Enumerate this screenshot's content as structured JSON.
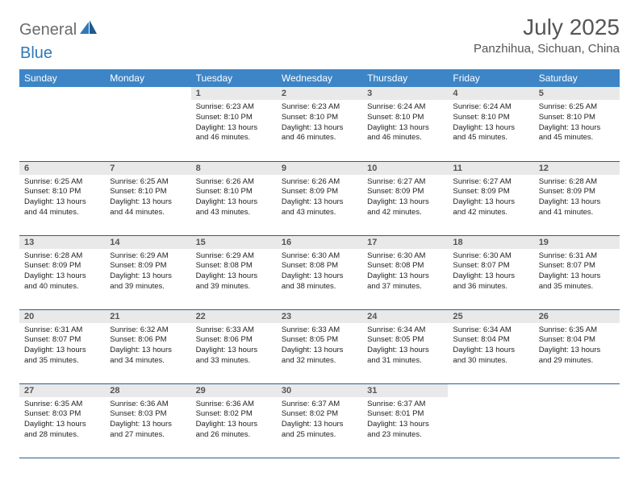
{
  "branding": {
    "text1": "General",
    "text2": "Blue"
  },
  "title": "July 2025",
  "location": "Panzhihua, Sichuan, China",
  "colors": {
    "header_bg": "#3d85c6",
    "header_text": "#ffffff",
    "daynum_bg": "#e9e9e9",
    "border": "#2f5d8a",
    "brand_gray": "#6b6b6b",
    "brand_blue": "#2f78b7"
  },
  "weekday_labels": [
    "Sunday",
    "Monday",
    "Tuesday",
    "Wednesday",
    "Thursday",
    "Friday",
    "Saturday"
  ],
  "weeks": [
    [
      {
        "day": null
      },
      {
        "day": null
      },
      {
        "day": 1,
        "sunrise": "6:23 AM",
        "sunset": "8:10 PM",
        "daylight": "13 hours and 46 minutes."
      },
      {
        "day": 2,
        "sunrise": "6:23 AM",
        "sunset": "8:10 PM",
        "daylight": "13 hours and 46 minutes."
      },
      {
        "day": 3,
        "sunrise": "6:24 AM",
        "sunset": "8:10 PM",
        "daylight": "13 hours and 46 minutes."
      },
      {
        "day": 4,
        "sunrise": "6:24 AM",
        "sunset": "8:10 PM",
        "daylight": "13 hours and 45 minutes."
      },
      {
        "day": 5,
        "sunrise": "6:25 AM",
        "sunset": "8:10 PM",
        "daylight": "13 hours and 45 minutes."
      }
    ],
    [
      {
        "day": 6,
        "sunrise": "6:25 AM",
        "sunset": "8:10 PM",
        "daylight": "13 hours and 44 minutes."
      },
      {
        "day": 7,
        "sunrise": "6:25 AM",
        "sunset": "8:10 PM",
        "daylight": "13 hours and 44 minutes."
      },
      {
        "day": 8,
        "sunrise": "6:26 AM",
        "sunset": "8:10 PM",
        "daylight": "13 hours and 43 minutes."
      },
      {
        "day": 9,
        "sunrise": "6:26 AM",
        "sunset": "8:09 PM",
        "daylight": "13 hours and 43 minutes."
      },
      {
        "day": 10,
        "sunrise": "6:27 AM",
        "sunset": "8:09 PM",
        "daylight": "13 hours and 42 minutes."
      },
      {
        "day": 11,
        "sunrise": "6:27 AM",
        "sunset": "8:09 PM",
        "daylight": "13 hours and 42 minutes."
      },
      {
        "day": 12,
        "sunrise": "6:28 AM",
        "sunset": "8:09 PM",
        "daylight": "13 hours and 41 minutes."
      }
    ],
    [
      {
        "day": 13,
        "sunrise": "6:28 AM",
        "sunset": "8:09 PM",
        "daylight": "13 hours and 40 minutes."
      },
      {
        "day": 14,
        "sunrise": "6:29 AM",
        "sunset": "8:09 PM",
        "daylight": "13 hours and 39 minutes."
      },
      {
        "day": 15,
        "sunrise": "6:29 AM",
        "sunset": "8:08 PM",
        "daylight": "13 hours and 39 minutes."
      },
      {
        "day": 16,
        "sunrise": "6:30 AM",
        "sunset": "8:08 PM",
        "daylight": "13 hours and 38 minutes."
      },
      {
        "day": 17,
        "sunrise": "6:30 AM",
        "sunset": "8:08 PM",
        "daylight": "13 hours and 37 minutes."
      },
      {
        "day": 18,
        "sunrise": "6:30 AM",
        "sunset": "8:07 PM",
        "daylight": "13 hours and 36 minutes."
      },
      {
        "day": 19,
        "sunrise": "6:31 AM",
        "sunset": "8:07 PM",
        "daylight": "13 hours and 35 minutes."
      }
    ],
    [
      {
        "day": 20,
        "sunrise": "6:31 AM",
        "sunset": "8:07 PM",
        "daylight": "13 hours and 35 minutes."
      },
      {
        "day": 21,
        "sunrise": "6:32 AM",
        "sunset": "8:06 PM",
        "daylight": "13 hours and 34 minutes."
      },
      {
        "day": 22,
        "sunrise": "6:33 AM",
        "sunset": "8:06 PM",
        "daylight": "13 hours and 33 minutes."
      },
      {
        "day": 23,
        "sunrise": "6:33 AM",
        "sunset": "8:05 PM",
        "daylight": "13 hours and 32 minutes."
      },
      {
        "day": 24,
        "sunrise": "6:34 AM",
        "sunset": "8:05 PM",
        "daylight": "13 hours and 31 minutes."
      },
      {
        "day": 25,
        "sunrise": "6:34 AM",
        "sunset": "8:04 PM",
        "daylight": "13 hours and 30 minutes."
      },
      {
        "day": 26,
        "sunrise": "6:35 AM",
        "sunset": "8:04 PM",
        "daylight": "13 hours and 29 minutes."
      }
    ],
    [
      {
        "day": 27,
        "sunrise": "6:35 AM",
        "sunset": "8:03 PM",
        "daylight": "13 hours and 28 minutes."
      },
      {
        "day": 28,
        "sunrise": "6:36 AM",
        "sunset": "8:03 PM",
        "daylight": "13 hours and 27 minutes."
      },
      {
        "day": 29,
        "sunrise": "6:36 AM",
        "sunset": "8:02 PM",
        "daylight": "13 hours and 26 minutes."
      },
      {
        "day": 30,
        "sunrise": "6:37 AM",
        "sunset": "8:02 PM",
        "daylight": "13 hours and 25 minutes."
      },
      {
        "day": 31,
        "sunrise": "6:37 AM",
        "sunset": "8:01 PM",
        "daylight": "13 hours and 23 minutes."
      },
      {
        "day": null
      },
      {
        "day": null
      }
    ]
  ],
  "labels": {
    "sunrise_prefix": "Sunrise: ",
    "sunset_prefix": "Sunset: ",
    "daylight_prefix": "Daylight: "
  }
}
